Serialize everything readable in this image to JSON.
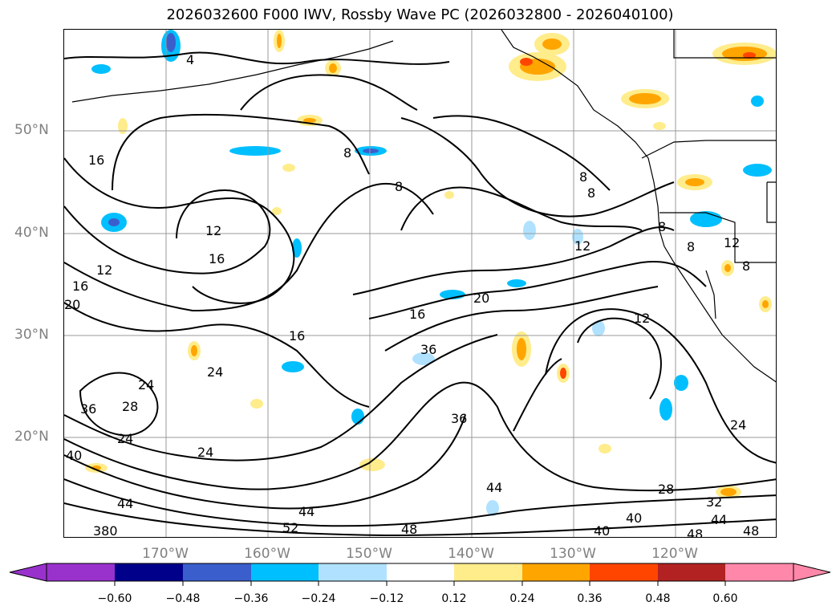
{
  "title": "2026032600 F000 IWV, Rossby Wave PC (2026032800 - 2026040100)",
  "latitude_labels": [
    "50°N",
    "40°N",
    "30°N",
    "20°N"
  ],
  "longitude_labels": [
    "170°W",
    "160°W",
    "150°W",
    "140°W",
    "130°W",
    "120°W"
  ],
  "contour_labels": [
    "4",
    "8",
    "8",
    "8",
    "8",
    "16",
    "16",
    "12",
    "12",
    "16",
    "12",
    "16",
    "20",
    "20",
    "16",
    "24",
    "24",
    "28",
    "24",
    "24",
    "36",
    "36",
    "36",
    "40",
    "44",
    "44",
    "48",
    "380",
    "44",
    "52",
    "40",
    "40",
    "28",
    "32",
    "44",
    "48",
    "48",
    "24",
    "12",
    "8",
    "8",
    "12",
    "8"
  ],
  "colorbar": {
    "ticks": [
      "−0.60",
      "−0.48",
      "−0.36",
      "−0.24",
      "−0.12",
      "0.12",
      "0.24",
      "0.36",
      "0.48",
      "0.60"
    ],
    "colors": [
      "#9932cc",
      "#00008b",
      "#3a5fcd",
      "#00bfff",
      "#b0e2ff",
      "#ffffff",
      "#ffec8b",
      "#ffa500",
      "#ff4500",
      "#b22222",
      "#ff88aa",
      "#ff88aa"
    ]
  },
  "colors": {
    "land_outline": "#000000",
    "contour": "#000000",
    "grid": "#999999",
    "axis_label": "#808080"
  }
}
